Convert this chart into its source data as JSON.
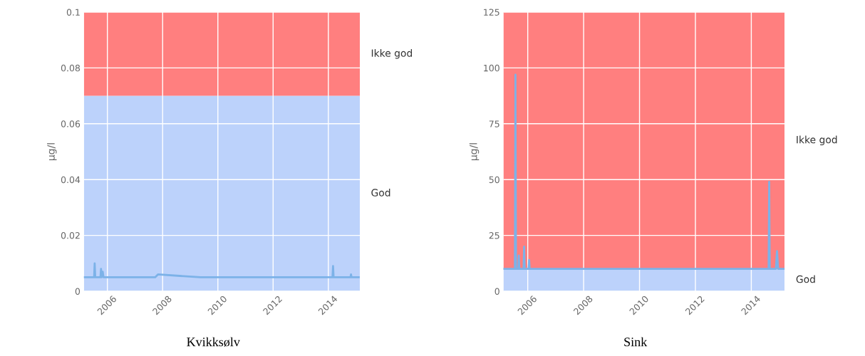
{
  "chart_data": [
    {
      "type": "line",
      "ylabel": "µg/l",
      "annotations": [
        "Kvikksølv"
      ],
      "series": [
        {
          "color": "#7cb2e8",
          "x": [
            2005.15,
            2005.52,
            2005.54,
            2005.56,
            2005.75,
            2005.77,
            2005.79,
            2005.81,
            2005.83,
            2005.86,
            2007.73,
            2007.83,
            2009.37,
            2014.15,
            2014.17,
            2014.19,
            2014.8,
            2014.82,
            2014.84,
            2015.1
          ],
          "values": [
            0.005,
            0.005,
            0.01,
            0.005,
            0.005,
            0.008,
            0.005,
            0.007,
            0.007,
            0.005,
            0.005,
            0.006,
            0.005,
            0.005,
            0.009,
            0.005,
            0.005,
            0.006,
            0.005,
            0.005
          ]
        }
      ],
      "bands": [
        {
          "axis": "y",
          "from": 0,
          "to": 0.07,
          "label": "God",
          "color": "#bcd2fb"
        },
        {
          "axis": "y",
          "from": 0.07,
          "to": 0.1,
          "label": "Ikke god",
          "color": "#ff7f7f"
        }
      ],
      "xlim": [
        2005.15,
        2015.14
      ],
      "xticks": [
        2006,
        2008,
        2010,
        2012,
        2014
      ],
      "ylim": [
        0,
        0.1
      ],
      "yticks": [
        0,
        0.02,
        0.04,
        0.06,
        0.08,
        0.1
      ],
      "grid": true
    },
    {
      "type": "line",
      "ylabel": "µg/l",
      "annotations": [
        "Sink"
      ],
      "series": [
        {
          "color": "#7cb2e8",
          "x": [
            2005.13,
            2005.54,
            2005.56,
            2005.58,
            2005.66,
            2005.68,
            2005.7,
            2005.85,
            2005.87,
            2005.89,
            2006.03,
            2006.05,
            2006.07,
            2014.62,
            2014.64,
            2014.66,
            2014.88,
            2014.92,
            2014.96,
            2015.19
          ],
          "values": [
            10,
            10,
            97,
            10,
            10,
            16,
            10,
            10,
            20,
            10,
            10,
            14,
            10,
            10,
            49,
            10,
            10,
            18,
            10,
            10
          ]
        }
      ],
      "bands": [
        {
          "axis": "y",
          "from": 0,
          "to": 10,
          "label": "God",
          "color": "#bcd2fb"
        },
        {
          "axis": "y",
          "from": 10,
          "to": 125,
          "label": "Ikke god",
          "color": "#ff7f7f"
        }
      ],
      "xlim": [
        2005.13,
        2015.19
      ],
      "xticks": [
        2006,
        2008,
        2010,
        2012,
        2014
      ],
      "ylim": [
        0,
        125
      ],
      "yticks": [
        0,
        25,
        50,
        75,
        100,
        125
      ],
      "grid": true
    }
  ]
}
